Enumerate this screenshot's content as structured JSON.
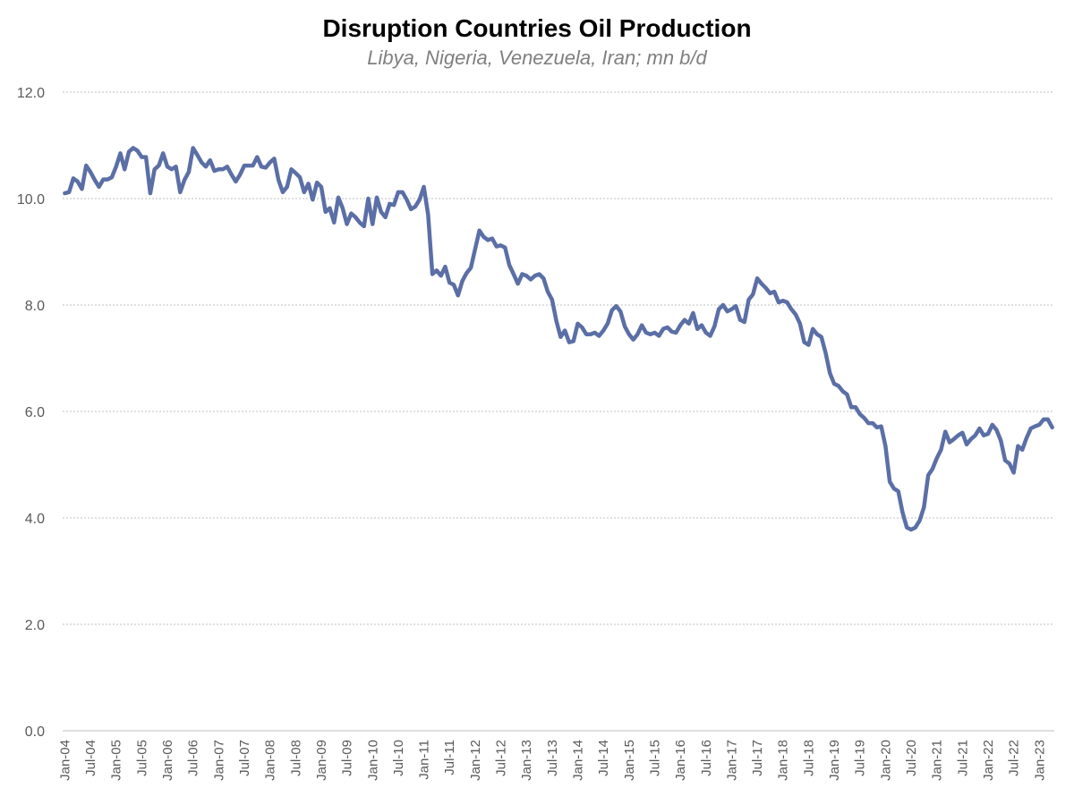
{
  "chart_data": {
    "type": "line",
    "title": "Disruption Countries Oil Production",
    "subtitle": "Libya, Nigeria, Venezuela, Iran; mn b/d",
    "xlabel": "",
    "ylabel": "",
    "ylim": [
      0,
      12
    ],
    "yticks": [
      "0.0",
      "2.0",
      "4.0",
      "6.0",
      "8.0",
      "10.0",
      "12.0"
    ],
    "xticks": [
      "Jan-04",
      "Jul-04",
      "Jan-05",
      "Jul-05",
      "Jan-06",
      "Jul-06",
      "Jan-07",
      "Jul-07",
      "Jan-08",
      "Jul-08",
      "Jan-09",
      "Jul-09",
      "Jan-10",
      "Jul-10",
      "Jan-11",
      "Jul-11",
      "Jan-12",
      "Jul-12",
      "Jan-13",
      "Jul-13",
      "Jan-14",
      "Jul-14",
      "Jan-15",
      "Jul-15",
      "Jan-16",
      "Jul-16",
      "Jan-17",
      "Jul-17",
      "Jan-18",
      "Jul-18",
      "Jan-19",
      "Jul-19",
      "Jan-20",
      "Jul-20",
      "Jan-21",
      "Jul-21",
      "Jan-22",
      "Jul-22",
      "Jan-23"
    ],
    "grid": "horizontal dotted",
    "legend": "none",
    "series_color": "#5b6fa6",
    "series": [
      {
        "x_start": "Jan-04",
        "frequency": "monthly",
        "values": [
          10.1,
          10.12,
          10.38,
          10.32,
          10.18,
          10.62,
          10.5,
          10.35,
          10.22,
          10.36,
          10.36,
          10.4,
          10.6,
          10.85,
          10.55,
          10.88,
          10.95,
          10.9,
          10.78,
          10.78,
          10.1,
          10.55,
          10.62,
          10.85,
          10.6,
          10.55,
          10.6,
          10.12,
          10.35,
          10.5,
          10.95,
          10.82,
          10.68,
          10.6,
          10.72,
          10.52,
          10.55,
          10.55,
          10.6,
          10.45,
          10.32,
          10.45,
          10.62,
          10.62,
          10.62,
          10.78,
          10.6,
          10.58,
          10.68,
          10.75,
          10.35,
          10.12,
          10.22,
          10.55,
          10.48,
          10.4,
          10.12,
          10.28,
          9.98,
          10.3,
          10.22,
          9.75,
          9.82,
          9.55,
          10.02,
          9.82,
          9.52,
          9.72,
          9.65,
          9.55,
          9.48,
          10.0,
          9.52,
          10.02,
          9.75,
          9.65,
          9.9,
          9.88,
          10.12,
          10.12,
          9.98,
          9.8,
          9.85,
          9.98,
          10.22,
          9.7,
          8.58,
          8.65,
          8.55,
          8.72,
          8.42,
          8.38,
          8.18,
          8.45,
          8.6,
          8.7,
          9.05,
          9.4,
          9.28,
          9.22,
          9.25,
          9.1,
          9.12,
          9.08,
          8.75,
          8.58,
          8.4,
          8.58,
          8.55,
          8.48,
          8.55,
          8.58,
          8.5,
          8.25,
          8.1,
          7.7,
          7.4,
          7.52,
          7.3,
          7.32,
          7.65,
          7.58,
          7.45,
          7.45,
          7.48,
          7.42,
          7.52,
          7.65,
          7.9,
          7.98,
          7.88,
          7.6,
          7.45,
          7.35,
          7.45,
          7.62,
          7.48,
          7.45,
          7.48,
          7.42,
          7.55,
          7.58,
          7.5,
          7.48,
          7.62,
          7.72,
          7.65,
          7.85,
          7.55,
          7.62,
          7.48,
          7.42,
          7.6,
          7.92,
          8.0,
          7.88,
          7.92,
          7.98,
          7.72,
          7.68,
          8.1,
          8.2,
          8.5,
          8.4,
          8.32,
          8.22,
          8.25,
          8.05,
          8.08,
          8.05,
          7.92,
          7.82,
          7.65,
          7.3,
          7.25,
          7.55,
          7.45,
          7.4,
          7.1,
          6.72,
          6.52,
          6.48,
          6.38,
          6.32,
          6.08,
          6.08,
          5.95,
          5.88,
          5.78,
          5.78,
          5.7,
          5.72,
          5.35,
          4.68,
          4.55,
          4.5,
          4.1,
          3.82,
          3.78,
          3.82,
          3.95,
          4.2,
          4.8,
          4.92,
          5.12,
          5.28,
          5.62,
          5.42,
          5.48,
          5.55,
          5.6,
          5.38,
          5.48,
          5.55,
          5.68,
          5.55,
          5.58,
          5.75,
          5.65,
          5.45,
          5.08,
          5.02,
          4.85,
          5.35,
          5.28,
          5.5,
          5.68,
          5.72,
          5.75,
          5.85,
          5.85,
          5.7
        ]
      }
    ]
  }
}
